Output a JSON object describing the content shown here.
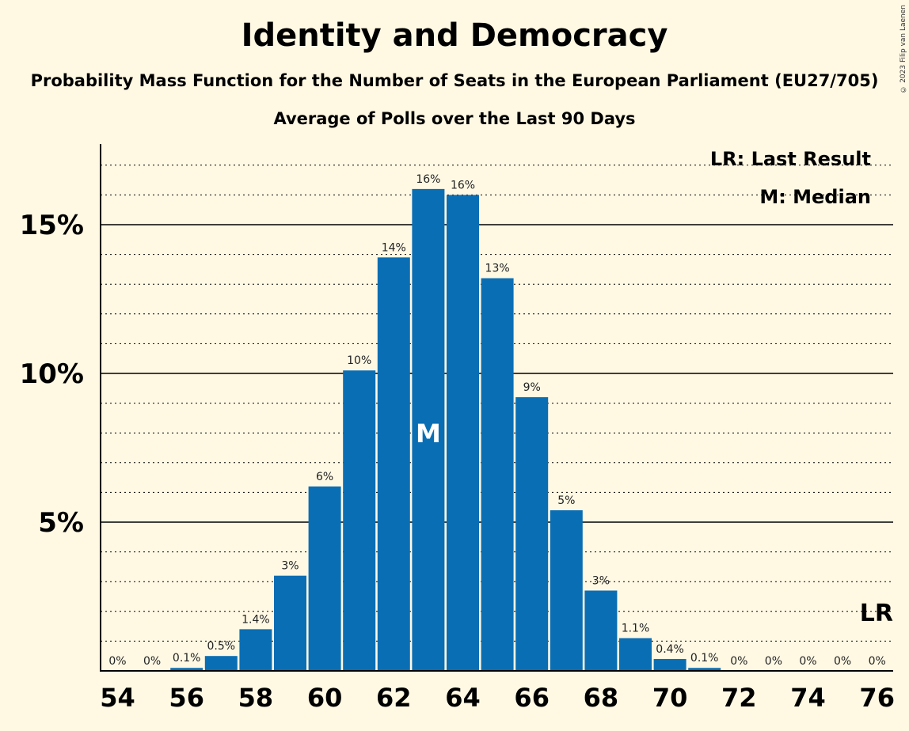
{
  "chart_data": {
    "type": "bar",
    "title": "Identity and Democracy",
    "subtitle": "Probability Mass Function for the Number of Seats in the European Parliament (EU27/705)",
    "subtitle2": "Average of Polls over the Last 90 Days",
    "copyright": "© 2023 Filip van Laenen",
    "legend": {
      "last_result": "LR: Last Result",
      "median": "M: Median",
      "placement": "top-right"
    },
    "x": [
      54,
      55,
      56,
      57,
      58,
      59,
      60,
      61,
      62,
      63,
      64,
      65,
      66,
      67,
      68,
      69,
      70,
      71,
      72,
      73,
      74,
      75,
      76
    ],
    "values": [
      0,
      0,
      0.1,
      0.5,
      1.4,
      3.2,
      6.2,
      10.1,
      13.9,
      16.2,
      16.0,
      13.2,
      9.2,
      5.4,
      2.7,
      1.1,
      0.4,
      0.1,
      0,
      0,
      0,
      0,
      0
    ],
    "data_labels": [
      "0%",
      "0%",
      "0.1%",
      "0.5%",
      "1.4%",
      "3%",
      "6%",
      "10%",
      "14%",
      "16%",
      "16%",
      "13%",
      "9%",
      "5%",
      "3%",
      "1.1%",
      "0.4%",
      "0.1%",
      "0%",
      "0%",
      "0%",
      "0%",
      "0%"
    ],
    "x_tick_labels": [
      "54",
      "56",
      "58",
      "60",
      "62",
      "64",
      "66",
      "68",
      "70",
      "72",
      "74",
      "76"
    ],
    "y_ticks": [
      5,
      10,
      15
    ],
    "y_tick_labels": [
      "5%",
      "10%",
      "15%"
    ],
    "ylim": [
      0,
      17.6
    ],
    "median_seat": 63,
    "median_label": "M",
    "last_result_seat": 76,
    "last_result_label": "LR",
    "last_result_value": 2.0,
    "bar_color": "#0A6EB4",
    "background_color": "#FFF9E4",
    "grid": true
  }
}
